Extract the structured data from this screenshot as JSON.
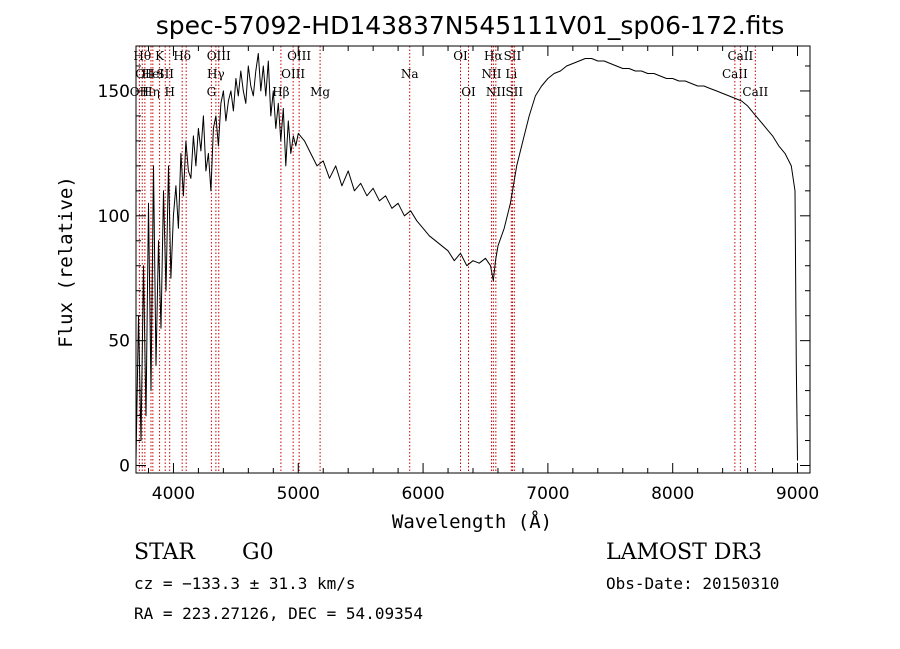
{
  "chart_data": {
    "type": "line",
    "title": "spec-57092-HD143837N545111V01_sp06-172.fits",
    "xlabel": "Wavelength (Å)",
    "ylabel": "Flux (relative)",
    "xlim": [
      3700,
      9100
    ],
    "ylim": [
      -3,
      168
    ],
    "xticks": [
      4000,
      5000,
      6000,
      7000,
      8000,
      9000
    ],
    "yticks": [
      0,
      50,
      100,
      150
    ],
    "series": [
      {
        "name": "flux",
        "x": [
          3700,
          3720,
          3740,
          3760,
          3780,
          3800,
          3820,
          3840,
          3860,
          3880,
          3900,
          3920,
          3940,
          3960,
          3980,
          4000,
          4020,
          4040,
          4060,
          4080,
          4100,
          4120,
          4140,
          4160,
          4180,
          4200,
          4220,
          4240,
          4260,
          4280,
          4300,
          4320,
          4340,
          4360,
          4380,
          4400,
          4420,
          4440,
          4460,
          4480,
          4500,
          4520,
          4540,
          4560,
          4580,
          4600,
          4620,
          4640,
          4660,
          4680,
          4700,
          4720,
          4740,
          4760,
          4780,
          4800,
          4820,
          4840,
          4860,
          4880,
          4900,
          4920,
          4940,
          4960,
          4980,
          5000,
          5050,
          5100,
          5150,
          5200,
          5250,
          5300,
          5350,
          5400,
          5450,
          5500,
          5550,
          5600,
          5650,
          5700,
          5750,
          5800,
          5850,
          5900,
          5950,
          6000,
          6050,
          6100,
          6150,
          6200,
          6250,
          6300,
          6350,
          6400,
          6450,
          6500,
          6540,
          6563,
          6580,
          6600,
          6650,
          6700,
          6750,
          6800,
          6850,
          6900,
          6950,
          7000,
          7050,
          7100,
          7150,
          7200,
          7250,
          7300,
          7350,
          7400,
          7450,
          7500,
          7550,
          7600,
          7650,
          7700,
          7750,
          7800,
          7850,
          7900,
          7950,
          8000,
          8050,
          8100,
          8150,
          8200,
          8250,
          8300,
          8350,
          8400,
          8450,
          8500,
          8550,
          8600,
          8650,
          8700,
          8750,
          8800,
          8850,
          8900,
          8950,
          8980,
          8990,
          9000
        ],
        "values": [
          2,
          60,
          10,
          80,
          20,
          105,
          30,
          120,
          40,
          90,
          55,
          110,
          70,
          120,
          75,
          100,
          112,
          95,
          125,
          108,
          130,
          118,
          115,
          132,
          120,
          135,
          126,
          140,
          118,
          125,
          110,
          135,
          140,
          128,
          145,
          150,
          138,
          146,
          150,
          142,
          155,
          148,
          158,
          150,
          145,
          160,
          152,
          148,
          158,
          165,
          150,
          160,
          148,
          162,
          140,
          150,
          135,
          145,
          130,
          143,
          120,
          138,
          125,
          132,
          128,
          133,
          130,
          125,
          120,
          122,
          115,
          120,
          112,
          118,
          110,
          113,
          108,
          111,
          106,
          108,
          103,
          105,
          100,
          102,
          98,
          95,
          92,
          90,
          88,
          86,
          82,
          85,
          80,
          82,
          81,
          83,
          80,
          74,
          82,
          88,
          95,
          105,
          120,
          130,
          140,
          148,
          152,
          155,
          157,
          158,
          160,
          161,
          162,
          163,
          163,
          162,
          162,
          161,
          160,
          159,
          159,
          158,
          158,
          157,
          157,
          156,
          155,
          155,
          154,
          154,
          153,
          152,
          152,
          151,
          150,
          149,
          148,
          147,
          146,
          144,
          141,
          138,
          135,
          132,
          128,
          125,
          120,
          110,
          40,
          2
        ]
      }
    ],
    "lines": [
      {
        "wl": 3727,
        "name": "OII",
        "row": 2
      },
      {
        "wl": 3750,
        "name": "Hθ",
        "row": 0
      },
      {
        "wl": 3771,
        "name": "OII",
        "row": 1
      },
      {
        "wl": 3820,
        "name": "Hη",
        "row": 2
      },
      {
        "wl": 3835,
        "name": "HeI",
        "row": 1
      },
      {
        "wl": 3889,
        "name": "K",
        "row": 0
      },
      {
        "wl": 3934,
        "name": "SII",
        "row": 1
      },
      {
        "wl": 3970,
        "name": "H",
        "row": 2
      },
      {
        "wl": 4070,
        "name": "Hδ",
        "row": 0
      },
      {
        "wl": 4102,
        "name": "",
        "row": 0
      },
      {
        "wl": 4304,
        "name": "G",
        "row": 2
      },
      {
        "wl": 4340,
        "name": "Hγ",
        "row": 1
      },
      {
        "wl": 4363,
        "name": "OIII",
        "row": 0
      },
      {
        "wl": 4861,
        "name": "Hβ",
        "row": 2
      },
      {
        "wl": 4959,
        "name": "OIII",
        "row": 1
      },
      {
        "wl": 5007,
        "name": "OIII",
        "row": 0
      },
      {
        "wl": 5175,
        "name": "Mg",
        "row": 2
      },
      {
        "wl": 5893,
        "name": "Na",
        "row": 1
      },
      {
        "wl": 6300,
        "name": "OI",
        "row": 0
      },
      {
        "wl": 6364,
        "name": "OI",
        "row": 2
      },
      {
        "wl": 6548,
        "name": "NII",
        "row": 1
      },
      {
        "wl": 6563,
        "name": "Hα",
        "row": 0
      },
      {
        "wl": 6583,
        "name": "NII",
        "row": 2
      },
      {
        "wl": 6707,
        "name": "Li",
        "row": 1
      },
      {
        "wl": 6716,
        "name": "SII",
        "row": 0
      },
      {
        "wl": 6731,
        "name": "SII",
        "row": 2
      },
      {
        "wl": 8498,
        "name": "CaII",
        "row": 1
      },
      {
        "wl": 8542,
        "name": "CaII",
        "row": 0
      },
      {
        "wl": 8662,
        "name": "CaII",
        "row": 2
      }
    ]
  },
  "info": {
    "object_class": "STAR",
    "subclass": "G0",
    "survey": "LAMOST DR3",
    "cz": "cz = −133.3 ± 31.3 km/s",
    "obs_date": "Obs-Date: 20150310",
    "coords": "RA = 223.27126, DEC =  54.09354"
  }
}
